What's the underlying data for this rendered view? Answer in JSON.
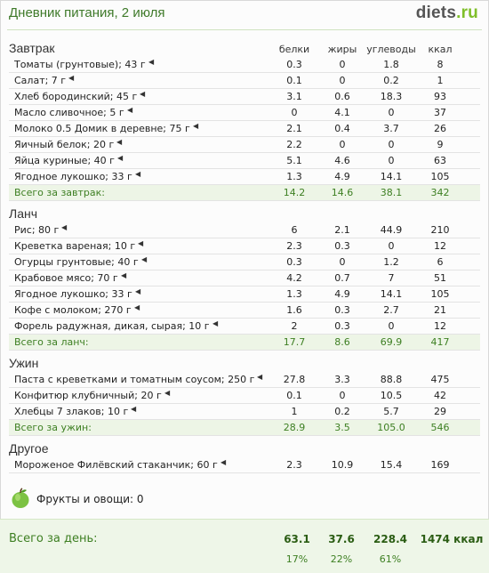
{
  "header": {
    "title": "Дневник питания, 2 июля",
    "brand_main": "diets",
    "brand_tld": ".ru"
  },
  "columns": {
    "protein": "белки",
    "fat": "жиры",
    "carbs": "углеводы",
    "kcal": "ккал"
  },
  "sections": [
    {
      "title": "Завтрак",
      "items": [
        {
          "name": "Томаты (грунтовые); 43 г",
          "protein": "0.3",
          "fat": "0",
          "carbs": "1.8",
          "kcal": "8"
        },
        {
          "name": "Салат; 7 г",
          "protein": "0.1",
          "fat": "0",
          "carbs": "0.2",
          "kcal": "1"
        },
        {
          "name": "Хлеб бородинский; 45 г",
          "protein": "3.1",
          "fat": "0.6",
          "carbs": "18.3",
          "kcal": "93"
        },
        {
          "name": "Масло сливочное; 5 г",
          "protein": "0",
          "fat": "4.1",
          "carbs": "0",
          "kcal": "37"
        },
        {
          "name": "Молоко 0.5 Домик в деревне; 75 г",
          "protein": "2.1",
          "fat": "0.4",
          "carbs": "3.7",
          "kcal": "26"
        },
        {
          "name": "Яичный белок; 20 г",
          "protein": "2.2",
          "fat": "0",
          "carbs": "0",
          "kcal": "9"
        },
        {
          "name": "Яйца куриные; 40 г",
          "protein": "5.1",
          "fat": "4.6",
          "carbs": "0",
          "kcal": "63"
        },
        {
          "name": "Ягодное лукошко; 33 г",
          "protein": "1.3",
          "fat": "4.9",
          "carbs": "14.1",
          "kcal": "105"
        }
      ],
      "total": {
        "name": "Всего за завтрак:",
        "protein": "14.2",
        "fat": "14.6",
        "carbs": "38.1",
        "kcal": "342"
      }
    },
    {
      "title": "Ланч",
      "items": [
        {
          "name": "Рис; 80 г",
          "protein": "6",
          "fat": "2.1",
          "carbs": "44.9",
          "kcal": "210"
        },
        {
          "name": "Креветка вареная; 10 г",
          "protein": "2.3",
          "fat": "0.3",
          "carbs": "0",
          "kcal": "12"
        },
        {
          "name": "Огурцы грунтовые; 40 г",
          "protein": "0.3",
          "fat": "0",
          "carbs": "1.2",
          "kcal": "6"
        },
        {
          "name": "Крабовое мясо; 70 г",
          "protein": "4.2",
          "fat": "0.7",
          "carbs": "7",
          "kcal": "51"
        },
        {
          "name": "Ягодное лукошко; 33 г",
          "protein": "1.3",
          "fat": "4.9",
          "carbs": "14.1",
          "kcal": "105"
        },
        {
          "name": "Кофе с молоком; 270 г",
          "protein": "1.6",
          "fat": "0.3",
          "carbs": "2.7",
          "kcal": "21"
        },
        {
          "name": "Форель радужная, дикая, сырая; 10 г",
          "protein": "2",
          "fat": "0.3",
          "carbs": "0",
          "kcal": "12"
        }
      ],
      "total": {
        "name": "Всего за ланч:",
        "protein": "17.7",
        "fat": "8.6",
        "carbs": "69.9",
        "kcal": "417"
      }
    },
    {
      "title": "Ужин",
      "items": [
        {
          "name": "Паста с креветками и томатным соусом; 250 г",
          "protein": "27.8",
          "fat": "3.3",
          "carbs": "88.8",
          "kcal": "475"
        },
        {
          "name": "Конфитюр клубничный; 20 г",
          "protein": "0.1",
          "fat": "0",
          "carbs": "10.5",
          "kcal": "42"
        },
        {
          "name": "Хлебцы 7 злаков; 10 г",
          "protein": "1",
          "fat": "0.2",
          "carbs": "5.7",
          "kcal": "29"
        }
      ],
      "total": {
        "name": "Всего за ужин:",
        "protein": "28.9",
        "fat": "3.5",
        "carbs": "105.0",
        "kcal": "546"
      }
    },
    {
      "title": "Другое",
      "items": [
        {
          "name": "Мороженое Филёвский стаканчик; 60 г",
          "protein": "2.3",
          "fat": "10.9",
          "carbs": "15.4",
          "kcal": "169"
        }
      ],
      "total": null
    }
  ],
  "fruit": {
    "label": "Фрукты и овощи: 0",
    "icon": "apple-icon",
    "icon_color": "#7cc243"
  },
  "daily": {
    "label": "Всего за день:",
    "protein": "63.1",
    "fat": "37.6",
    "carbs": "228.4",
    "kcal": "1474 ккал",
    "protein_pct": "17%",
    "fat_pct": "22%",
    "carbs_pct": "61%"
  },
  "colors": {
    "accent_green": "#3d7f22",
    "total_row_bg": "#edf5e6",
    "brand_green": "#7fbf2a"
  }
}
